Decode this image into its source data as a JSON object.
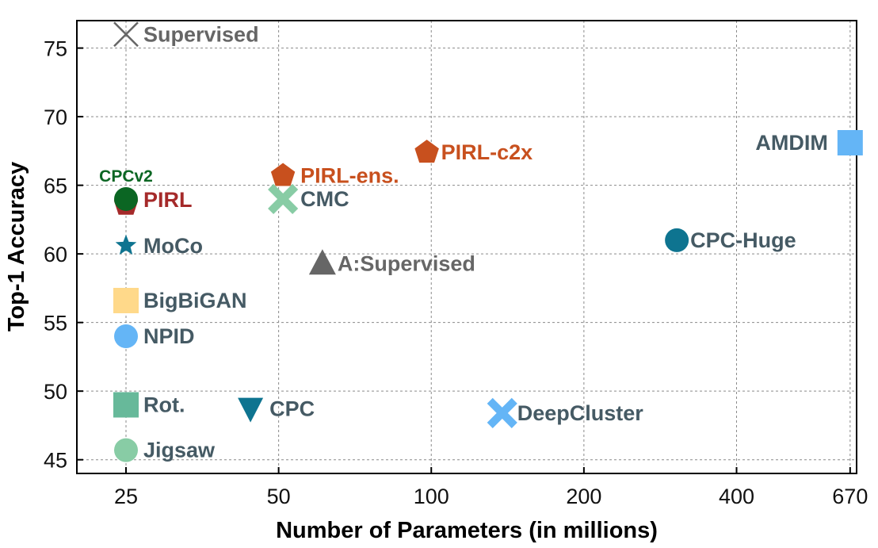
{
  "chart_data": {
    "type": "scatter",
    "title": "",
    "xlabel": "Number of Parameters (in millions)",
    "ylabel": "Top-1 Accuracy",
    "xscale": "log",
    "xlim": [
      20,
      690
    ],
    "ylim": [
      44,
      77
    ],
    "xticks": [
      25,
      50,
      100,
      200,
      400,
      670
    ],
    "yticks": [
      45,
      50,
      55,
      60,
      65,
      70,
      75
    ],
    "grid": true,
    "points": [
      {
        "label": "Supervised",
        "x": 25,
        "y": 76,
        "marker": "x",
        "color": "#666666",
        "label_color": "#666666"
      },
      {
        "label": "PIRL-c2x",
        "x": 98,
        "y": 67.4,
        "marker": "pentagon",
        "color": "#C8501E",
        "label_color": "#C8501E"
      },
      {
        "label": "PIRL-ens.",
        "x": 51,
        "y": 65.7,
        "marker": "pentagon",
        "color": "#C8501E",
        "label_color": "#C8501E"
      },
      {
        "label": "AMDIM",
        "x": 670,
        "y": 68.1,
        "marker": "square",
        "color": "#64B5F6",
        "label_color": "#455A64"
      },
      {
        "label": "CPCv2",
        "x": 25,
        "y": 64,
        "marker": "circle",
        "color": "#0B6623",
        "label_color": "#0B6623"
      },
      {
        "label": "PIRL",
        "x": 25,
        "y": 63.6,
        "marker": "pentagon",
        "color": "#A52A2A",
        "label_color": "#A52A2A"
      },
      {
        "label": "CMC",
        "x": 51,
        "y": 64,
        "marker": "cross",
        "color": "#88CCA5",
        "label_color": "#455A64"
      },
      {
        "label": "CPC-Huge",
        "x": 305,
        "y": 61,
        "marker": "circle",
        "color": "#0E7490",
        "label_color": "#455A64"
      },
      {
        "label": "MoCo",
        "x": 25,
        "y": 60.6,
        "marker": "star",
        "color": "#0E7490",
        "label_color": "#455A64"
      },
      {
        "label": "A:Supervised",
        "x": 61,
        "y": 59.3,
        "marker": "triangle-up",
        "color": "#666666",
        "label_color": "#666666"
      },
      {
        "label": "BigBiGAN",
        "x": 25,
        "y": 56.6,
        "marker": "square",
        "color": "#FFD98A",
        "label_color": "#455A64"
      },
      {
        "label": "NPID",
        "x": 25,
        "y": 54,
        "marker": "circle",
        "color": "#64B5F6",
        "label_color": "#455A64"
      },
      {
        "label": "Rot.",
        "x": 25,
        "y": 49,
        "marker": "square",
        "color": "#67B99A",
        "label_color": "#455A64"
      },
      {
        "label": "CPC",
        "x": 44,
        "y": 48.7,
        "marker": "triangle-down",
        "color": "#0E7490",
        "label_color": "#455A64"
      },
      {
        "label": "DeepCluster",
        "x": 138,
        "y": 48.4,
        "marker": "cross",
        "color": "#64B5F6",
        "label_color": "#455A64"
      },
      {
        "label": "Jigsaw",
        "x": 25,
        "y": 45.7,
        "marker": "circle",
        "color": "#88CCA5",
        "label_color": "#455A64"
      }
    ]
  }
}
